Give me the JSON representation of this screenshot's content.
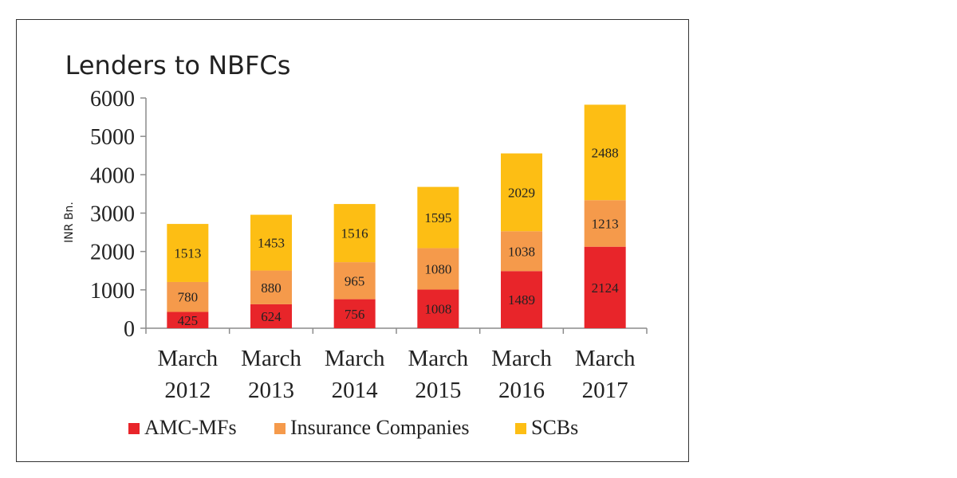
{
  "chart_data": {
    "type": "bar",
    "stacked": true,
    "title": "Lenders to NBFCs",
    "xlabel": "",
    "ylabel": "INR Bn.",
    "categories": [
      [
        "March",
        "2012"
      ],
      [
        "March",
        "2013"
      ],
      [
        "March",
        "2014"
      ],
      [
        "March",
        "2015"
      ],
      [
        "March",
        "2016"
      ],
      [
        "March",
        "2017"
      ]
    ],
    "series": [
      {
        "name": "AMC-MFs",
        "color": "#e8252a",
        "values": [
          425,
          624,
          756,
          1008,
          1489,
          2124
        ]
      },
      {
        "name": "Insurance Companies",
        "color": "#f59a4b",
        "values": [
          780,
          880,
          965,
          1080,
          1038,
          1213
        ]
      },
      {
        "name": "SCBs",
        "color": "#fdbe14",
        "values": [
          1513,
          1453,
          1516,
          1595,
          2029,
          2488
        ]
      }
    ],
    "ylim": [
      0,
      6000
    ],
    "yticks": [
      0,
      1000,
      2000,
      3000,
      4000,
      5000,
      6000
    ],
    "grid": false,
    "legend": "bottom"
  }
}
